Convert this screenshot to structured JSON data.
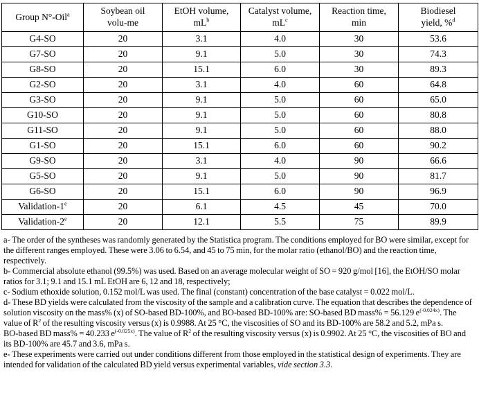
{
  "table": {
    "headers": [
      {
        "lines": [
          "Group N°-Oil"
        ],
        "sup": "a"
      },
      {
        "lines": [
          "Soybean oil",
          "volu-me"
        ],
        "sup": ""
      },
      {
        "lines": [
          "EtOH volume,",
          "mL"
        ],
        "sup": "b"
      },
      {
        "lines": [
          "Catalyst volume,",
          "mL"
        ],
        "sup": "c"
      },
      {
        "lines": [
          "Reaction time,",
          "min"
        ],
        "sup": ""
      },
      {
        "lines": [
          "Biodiesel",
          "yield, %"
        ],
        "sup": "d"
      }
    ],
    "rows": [
      {
        "group": "G4-SO",
        "group_sup": "",
        "values": [
          "20",
          "3.1",
          "4.0",
          "30",
          "53.6"
        ]
      },
      {
        "group": "G7-SO",
        "group_sup": "",
        "values": [
          "20",
          "9.1",
          "5.0",
          "30",
          "74.3"
        ]
      },
      {
        "group": "G8-SO",
        "group_sup": "",
        "values": [
          "20",
          "15.1",
          "6.0",
          "30",
          "89.3"
        ]
      },
      {
        "group": "G2-SO",
        "group_sup": "",
        "values": [
          "20",
          "3.1",
          "4.0",
          "60",
          "64.8"
        ]
      },
      {
        "group": "G3-SO",
        "group_sup": "",
        "values": [
          "20",
          "9.1",
          "5.0",
          "60",
          "65.0"
        ]
      },
      {
        "group": "G10-SO",
        "group_sup": "",
        "values": [
          "20",
          "9.1",
          "5.0",
          "60",
          "80.8"
        ]
      },
      {
        "group": "G11-SO",
        "group_sup": "",
        "values": [
          "20",
          "9.1",
          "5.0",
          "60",
          "88.0"
        ]
      },
      {
        "group": "G1-SO",
        "group_sup": "",
        "values": [
          "20",
          "15.1",
          "6.0",
          "60",
          "90.2"
        ]
      },
      {
        "group": "G9-SO",
        "group_sup": "",
        "values": [
          "20",
          "3.1",
          "4.0",
          "90",
          "66.6"
        ]
      },
      {
        "group": "G5-SO",
        "group_sup": "",
        "values": [
          "20",
          "9.1",
          "5.0",
          "90",
          "81.7"
        ]
      },
      {
        "group": "G6-SO",
        "group_sup": "",
        "values": [
          "20",
          "15.1",
          "6.0",
          "90",
          "96.9"
        ]
      },
      {
        "group": "Validation-1",
        "group_sup": "e",
        "values": [
          "20",
          "6.1",
          "4.5",
          "45",
          "70.0"
        ]
      },
      {
        "group": "Validation-2",
        "group_sup": "e",
        "values": [
          "20",
          "12.1",
          "5.5",
          "75",
          "89.9"
        ]
      }
    ]
  },
  "footnotes": [
    [
      {
        "t": "a- The order of the syntheses was randomly generated by the Statistica program. The conditions employed for BO were similar, except for the different ranges employed. These were 3.06 to 6.54, and 45 to 75 min, for the molar ratio (ethanol/BO) and the reaction time, respectively."
      }
    ],
    [
      {
        "t": "b- Commercial absolute ethanol (99.5%) was used. Based on an average molecular weight of SO = 920 g/mol [16], the EtOH/SO molar ratios for 3.1; 9.1 and 15.1 mL EtOH are 6, 12 and 18, respectively;"
      }
    ],
    [
      {
        "t": "c- Sodium ethoxide solution, 0.152 mol/L was used. The final (constant) concentration of the base catalyst = 0.022 mol/L."
      }
    ],
    [
      {
        "t": "d- These BD yields were calculated from the viscosity of the sample and a calibration curve. The equation that describes the dependence of solution viscosity on the mass% (x) of SO-based BD-100%, and BO-based BD-100% are: SO-based BD mass% = 56.129 e"
      },
      {
        "t": "(-0.024x)",
        "sup": true
      },
      {
        "t": ". The value of R"
      },
      {
        "t": "2",
        "sup": true
      },
      {
        "t": " of the resulting viscosity versus (x) is 0.9988. At 25 °C, the viscosities of SO and its BD-100% are 58.2 and 5.2, mPa s."
      }
    ],
    [
      {
        "t": "BO-based BD mass% = 40.233 e"
      },
      {
        "t": "(-0.025x)",
        "sup": true
      },
      {
        "t": ". The value of R"
      },
      {
        "t": "2",
        "sup": true
      },
      {
        "t": " of the resulting viscosity versus (x) is 0.9902. At 25 °C, the viscosities of BO and its BD-100% are 45.7 and 3.6, mPa s."
      }
    ],
    [
      {
        "t": "e- These experiments were carried out under conditions different from those employed in the statistical design of experiments. They are intended for validation of the calculated BD yield versus experimental variables, "
      },
      {
        "t": "vide section 3.3",
        "i": true
      },
      {
        "t": "."
      }
    ]
  ]
}
